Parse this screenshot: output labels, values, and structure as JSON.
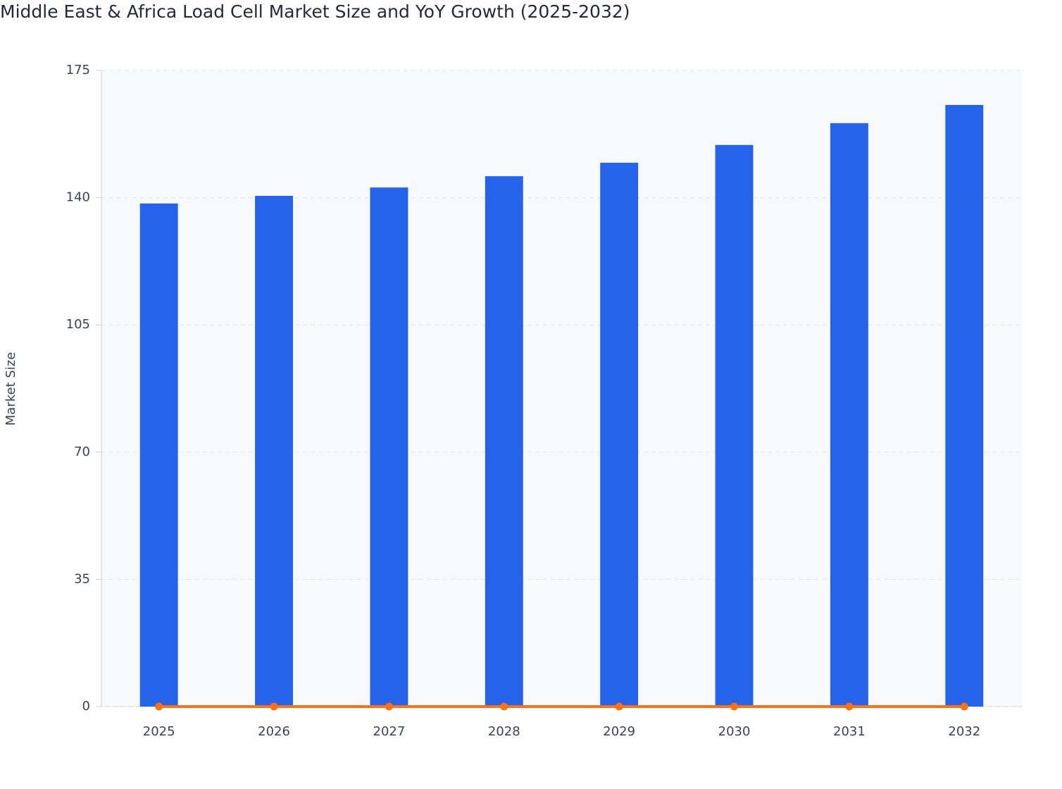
{
  "chart_data": {
    "type": "bar",
    "title": "Middle East & Africa Load Cell Market Size and YoY Growth (2025-2032)",
    "y_label": "Market Size",
    "categories": [
      "2025",
      "2026",
      "2027",
      "2028",
      "2029",
      "2030",
      "2031",
      "2032"
    ],
    "series": [
      {
        "type": "bar",
        "color": "#2563eb",
        "values": [
          138.4,
          140.5,
          142.8,
          145.9,
          149.6,
          154.5,
          160.5,
          165.5
        ]
      },
      {
        "type": "line",
        "color": "#f97316",
        "values": [
          0,
          0,
          0,
          0,
          0,
          0,
          0,
          0
        ]
      }
    ],
    "ylim": [
      0,
      175
    ],
    "yticks": [
      0,
      35,
      70,
      105,
      140,
      175
    ],
    "grid": true
  }
}
